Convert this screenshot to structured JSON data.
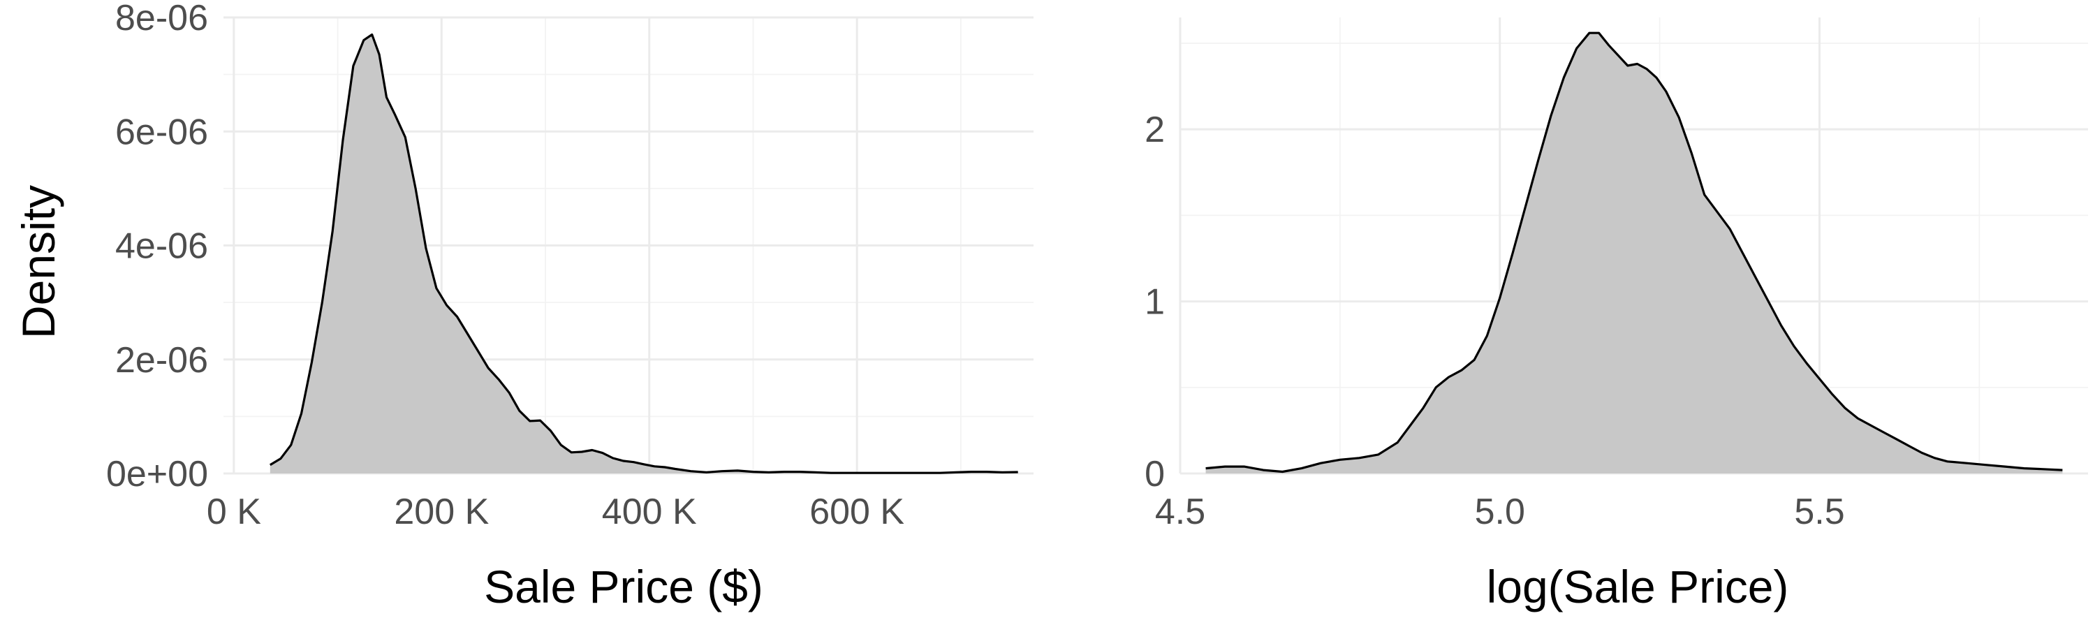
{
  "chart_data": [
    {
      "type": "area",
      "title": "",
      "xlabel": "Sale Price ($)",
      "ylabel": "Density",
      "xlim": [
        -10000,
        770000
      ],
      "ylim": [
        0,
        8e-06
      ],
      "x_ticks": [
        0,
        200000,
        400000,
        600000
      ],
      "x_tick_labels": [
        "0 K",
        "200 K",
        "400 K",
        "600 K"
      ],
      "y_ticks": [
        0,
        2e-06,
        4e-06,
        6e-06,
        8e-06
      ],
      "y_tick_labels": [
        "0e+00",
        "2e-06",
        "4e-06",
        "6e-06",
        "8e-06"
      ],
      "grid": true,
      "fill_color": "#c8c8c8",
      "line_color": "#000000",
      "x": [
        34900,
        45000,
        55000,
        65000,
        75000,
        85000,
        95000,
        105000,
        115000,
        125000,
        133000,
        140000,
        147000,
        155000,
        165000,
        175000,
        185000,
        195000,
        205000,
        215000,
        225000,
        235000,
        245000,
        255000,
        265000,
        275000,
        285000,
        295000,
        305000,
        315000,
        325000,
        335000,
        345000,
        355000,
        365000,
        375000,
        385000,
        395000,
        405000,
        415000,
        425000,
        440000,
        455000,
        470000,
        485000,
        500000,
        515000,
        530000,
        545000,
        560000,
        575000,
        590000,
        605000,
        620000,
        635000,
        650000,
        665000,
        680000,
        695000,
        710000,
        725000,
        740000,
        755000
      ],
      "y": [
        1.5e-07,
        2.6e-07,
        5e-07,
        1.05e-06,
        1.95e-06,
        3e-06,
        4.25e-06,
        5.85e-06,
        7.15e-06,
        7.6e-06,
        7.7e-06,
        7.35e-06,
        6.6e-06,
        6.3e-06,
        5.9e-06,
        5e-06,
        3.95e-06,
        3.25e-06,
        2.95e-06,
        2.75e-06,
        2.45e-06,
        2.15e-06,
        1.85e-06,
        1.65e-06,
        1.42e-06,
        1.1e-06,
        9.2e-07,
        9.3e-07,
        7.5e-07,
        5e-07,
        3.7e-07,
        3.8e-07,
        4.1e-07,
        3.6e-07,
        2.7e-07,
        2.2e-07,
        2e-07,
        1.6e-07,
        1.25e-07,
        1.1e-07,
        8e-08,
        4e-08,
        2e-08,
        4e-08,
        5e-08,
        3e-08,
        2e-08,
        3e-08,
        3e-08,
        2e-08,
        1e-08,
        1e-08,
        1e-08,
        1e-08,
        1e-08,
        1e-08,
        1e-08,
        1e-08,
        2e-08,
        3e-08,
        3e-08,
        2e-08,
        2.5e-08
      ]
    },
    {
      "type": "area",
      "title": "",
      "xlabel": "log(Sale Price)",
      "ylabel": "",
      "xlim": [
        4.5,
        5.92
      ],
      "ylim": [
        0,
        2.65
      ],
      "x_ticks": [
        4.5,
        5.0,
        5.5
      ],
      "x_tick_labels": [
        "4.5",
        "5.0",
        "5.5"
      ],
      "y_ticks": [
        0,
        1,
        2
      ],
      "y_tick_labels": [
        "0",
        "1",
        "2"
      ],
      "grid": true,
      "fill_color": "#c8c8c8",
      "line_color": "#000000",
      "x": [
        4.54,
        4.57,
        4.6,
        4.63,
        4.66,
        4.69,
        4.72,
        4.75,
        4.78,
        4.81,
        4.84,
        4.86,
        4.88,
        4.9,
        4.92,
        4.94,
        4.96,
        4.98,
        5.0,
        5.02,
        5.04,
        5.06,
        5.08,
        5.1,
        5.12,
        5.14,
        5.155,
        5.17,
        5.185,
        5.2,
        5.215,
        5.23,
        5.245,
        5.26,
        5.28,
        5.3,
        5.32,
        5.34,
        5.36,
        5.38,
        5.4,
        5.42,
        5.44,
        5.46,
        5.48,
        5.5,
        5.52,
        5.54,
        5.56,
        5.58,
        5.6,
        5.62,
        5.64,
        5.66,
        5.68,
        5.7,
        5.73,
        5.76,
        5.79,
        5.82,
        5.85,
        5.88
      ],
      "y": [
        0.03,
        0.04,
        0.04,
        0.02,
        0.01,
        0.03,
        0.06,
        0.08,
        0.09,
        0.11,
        0.18,
        0.28,
        0.38,
        0.5,
        0.56,
        0.6,
        0.66,
        0.8,
        1.02,
        1.28,
        1.55,
        1.82,
        2.08,
        2.3,
        2.47,
        2.56,
        2.56,
        2.49,
        2.43,
        2.37,
        2.38,
        2.35,
        2.3,
        2.22,
        2.07,
        1.86,
        1.62,
        1.52,
        1.42,
        1.28,
        1.14,
        1.0,
        0.86,
        0.74,
        0.64,
        0.55,
        0.46,
        0.38,
        0.32,
        0.28,
        0.24,
        0.2,
        0.16,
        0.12,
        0.09,
        0.07,
        0.06,
        0.05,
        0.04,
        0.03,
        0.025,
        0.02
      ]
    }
  ]
}
